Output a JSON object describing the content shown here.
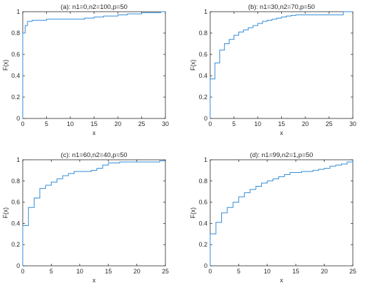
{
  "figure": {
    "line_color": "#2e8ad8"
  },
  "chart_data": [
    {
      "type": "line",
      "step": true,
      "title": "(a): n1=0,n2=100,p=50",
      "xlabel": "x",
      "ylabel": "F(x)",
      "xlim": [
        0,
        30
      ],
      "ylim": [
        0,
        1
      ],
      "xticks": [
        0,
        5,
        10,
        15,
        20,
        25,
        30
      ],
      "yticks": [
        0,
        0.2,
        0.4,
        0.6,
        0.8,
        1
      ],
      "grid": false,
      "x": [
        0,
        0.5,
        1,
        2,
        5,
        13,
        15,
        17,
        20,
        22,
        25,
        29
      ],
      "y": [
        0.8,
        0.87,
        0.91,
        0.92,
        0.93,
        0.94,
        0.95,
        0.96,
        0.97,
        0.98,
        0.99,
        1.0
      ]
    },
    {
      "type": "line",
      "step": true,
      "title": "(b): n1=30,n2=70,p=50",
      "xlabel": "x",
      "ylabel": "F(x)",
      "xlim": [
        0,
        30
      ],
      "ylim": [
        0,
        1
      ],
      "xticks": [
        0,
        5,
        10,
        15,
        20,
        25,
        30
      ],
      "yticks": [
        0,
        0.2,
        0.4,
        0.6,
        0.8,
        1
      ],
      "grid": false,
      "x": [
        0,
        1,
        2,
        3,
        4,
        5,
        6,
        7,
        8,
        9,
        10,
        11,
        12,
        13,
        14,
        15,
        16,
        17,
        18,
        28
      ],
      "y": [
        0.37,
        0.52,
        0.64,
        0.7,
        0.74,
        0.78,
        0.81,
        0.83,
        0.85,
        0.87,
        0.89,
        0.91,
        0.92,
        0.93,
        0.94,
        0.95,
        0.96,
        0.965,
        0.97,
        1.0
      ]
    },
    {
      "type": "line",
      "step": true,
      "title": "(c): n1=60,n2=40,p=50",
      "xlabel": "x",
      "ylabel": "F(x)",
      "xlim": [
        0,
        25
      ],
      "ylim": [
        0,
        1
      ],
      "xticks": [
        0,
        5,
        10,
        15,
        20,
        25
      ],
      "yticks": [
        0,
        0.2,
        0.4,
        0.6,
        0.8,
        1
      ],
      "grid": false,
      "x": [
        0,
        1,
        2,
        3,
        4,
        5,
        6,
        7,
        8,
        9,
        12,
        13,
        14,
        15,
        17,
        24
      ],
      "y": [
        0.38,
        0.55,
        0.64,
        0.73,
        0.76,
        0.79,
        0.82,
        0.85,
        0.87,
        0.89,
        0.9,
        0.92,
        0.95,
        0.97,
        0.98,
        0.99
      ]
    },
    {
      "type": "line",
      "step": true,
      "title": "(d): n1=99,n2=1,p=50",
      "xlabel": "x",
      "ylabel": "F(x)",
      "xlim": [
        0,
        25
      ],
      "ylim": [
        0,
        1
      ],
      "xticks": [
        0,
        5,
        10,
        15,
        20,
        25
      ],
      "yticks": [
        0,
        0.2,
        0.4,
        0.6,
        0.8,
        1
      ],
      "grid": false,
      "x": [
        0,
        1,
        2,
        3,
        4,
        5,
        6,
        7,
        8,
        9,
        10,
        11,
        12,
        13,
        14,
        16,
        18,
        19,
        20,
        21,
        22,
        23,
        24,
        25
      ],
      "y": [
        0.3,
        0.41,
        0.5,
        0.55,
        0.6,
        0.65,
        0.69,
        0.72,
        0.75,
        0.78,
        0.8,
        0.82,
        0.84,
        0.86,
        0.88,
        0.89,
        0.9,
        0.91,
        0.92,
        0.94,
        0.95,
        0.96,
        0.98,
        0.99
      ]
    }
  ]
}
